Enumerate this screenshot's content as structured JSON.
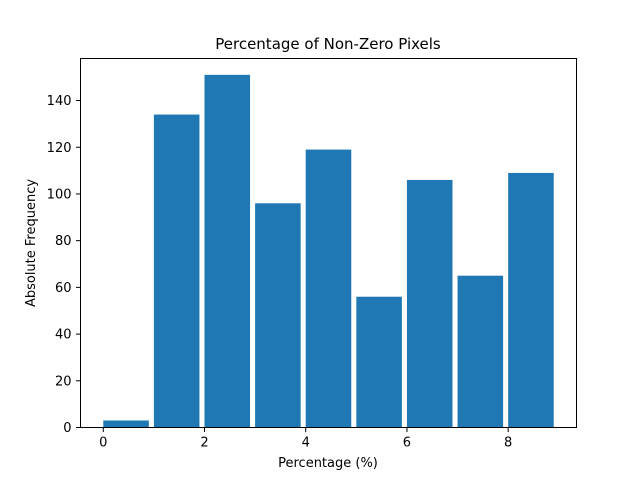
{
  "chart_data": {
    "type": "bar",
    "title": "Percentage of Non-Zero Pixels",
    "xlabel": "Percentage (%)",
    "ylabel": "Absolute Frequency",
    "bins": [
      {
        "start": 0.0,
        "end": 0.9,
        "value": 3
      },
      {
        "start": 1.0,
        "end": 1.9,
        "value": 134
      },
      {
        "start": 2.0,
        "end": 2.9,
        "value": 151
      },
      {
        "start": 3.0,
        "end": 3.9,
        "value": 96
      },
      {
        "start": 4.0,
        "end": 4.9,
        "value": 119
      },
      {
        "start": 5.0,
        "end": 5.9,
        "value": 56
      },
      {
        "start": 6.0,
        "end": 6.9,
        "value": 106
      },
      {
        "start": 7.0,
        "end": 7.9,
        "value": 65
      },
      {
        "start": 8.0,
        "end": 8.9,
        "value": 109
      }
    ],
    "xlim": [
      -0.45,
      9.35
    ],
    "ylim": [
      0,
      158
    ],
    "xticks": [
      0,
      2,
      4,
      6,
      8
    ],
    "xtick_labels": [
      "0",
      "2",
      "4",
      "6",
      "8"
    ],
    "yticks": [
      0,
      20,
      40,
      60,
      80,
      100,
      120,
      140
    ],
    "ytick_labels": [
      "0",
      "20",
      "40",
      "60",
      "80",
      "100",
      "120",
      "140"
    ],
    "bar_color": "#1f77b4",
    "grid": false,
    "legend": false
  }
}
